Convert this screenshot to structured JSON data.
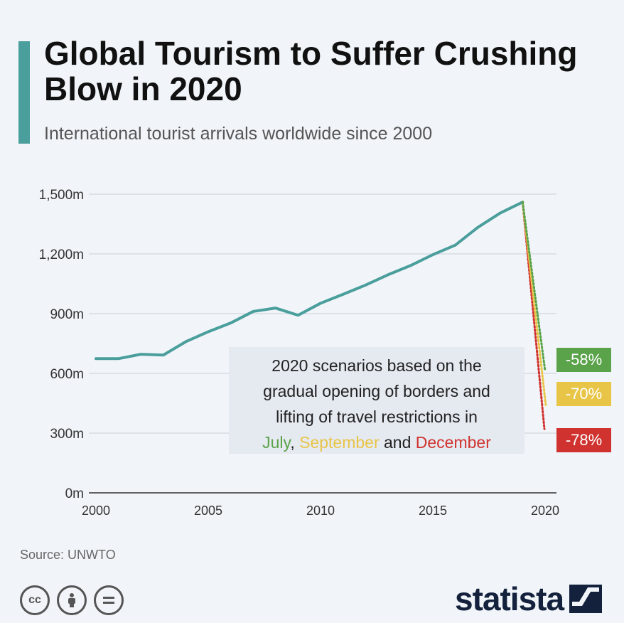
{
  "header": {
    "title": "Global Tourism to Suffer Crushing Blow in 2020",
    "subtitle": "International tourist arrivals worldwide since 2000"
  },
  "colors": {
    "accent": "#4a9e9c",
    "line": "#4a9e9c",
    "july": "#5aa34a",
    "september": "#e8c547",
    "december": "#d0332f",
    "logo": "#14213d"
  },
  "chart_data": {
    "type": "line",
    "title": "Global Tourism to Suffer Crushing Blow in 2020",
    "subtitle": "International tourist arrivals worldwide since 2000",
    "x": [
      2000,
      2001,
      2002,
      2003,
      2004,
      2005,
      2006,
      2007,
      2008,
      2009,
      2010,
      2011,
      2012,
      2013,
      2014,
      2015,
      2016,
      2017,
      2018,
      2019
    ],
    "series": [
      {
        "values": [
          674,
          674,
          696,
          692,
          759,
          809,
          853,
          911,
          928,
          892,
          952,
          997,
          1043,
          1095,
          1141,
          1196,
          1244,
          1333,
          1405,
          1460
        ]
      }
    ],
    "scenarios": [
      {
        "name": "July",
        "change_label": "-58%",
        "value_2020": 613
      },
      {
        "name": "September",
        "change_label": "-70%",
        "value_2020": 438
      },
      {
        "name": "December",
        "change_label": "-78%",
        "value_2020": 321
      }
    ],
    "ylim": [
      0,
      1500
    ],
    "yticks": [
      0,
      300,
      600,
      900,
      1200,
      1500
    ],
    "ytick_labels": [
      "0m",
      "300m",
      "600m",
      "900m",
      "1,200m",
      "1,500m"
    ],
    "xticks": [
      2000,
      2005,
      2010,
      2015,
      2020
    ],
    "xtick_labels": [
      "2000",
      "2005",
      "2010",
      "2015",
      "2020"
    ],
    "grid": true,
    "annotation": {
      "line1": "2020 scenarios based on the",
      "line2": "gradual opening of borders and",
      "line3": "lifting of travel restrictions in",
      "july": "July",
      "sep1": ", ",
      "september": "September",
      "and": " and ",
      "december": "December"
    }
  },
  "footer": {
    "source": "Source: UNWTO",
    "logo_text": "statista",
    "cc_icons": [
      "creative-commons-icon",
      "attribution-icon",
      "no-derivatives-icon"
    ]
  }
}
